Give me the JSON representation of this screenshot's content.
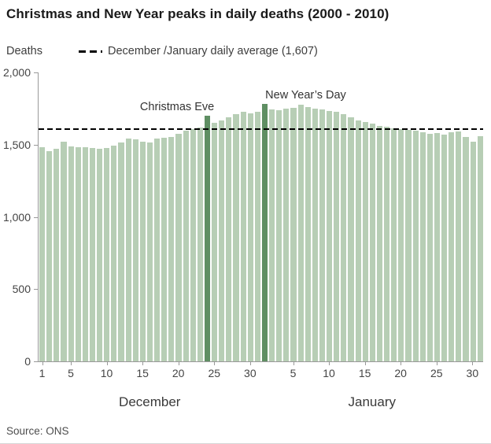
{
  "title": "Christmas and New Year peaks in daily deaths (2000 - 2010)",
  "legend": {
    "average_label": "December /January daily average (1,607)"
  },
  "annotations": {
    "christmas": {
      "label": "Christmas Eve",
      "index": 23
    },
    "new_year": {
      "label": "New Year’s Day",
      "index": 31
    }
  },
  "source": "Source: ONS",
  "colors": {
    "bar": "#b7ceb5",
    "bar_highlight": "#5f8f63",
    "average_line": "#000000",
    "axis": "#999999"
  },
  "chart_data": {
    "type": "bar",
    "title": "Christmas and New Year peaks in daily deaths (2000 - 2010)",
    "ylabel": "Deaths",
    "xlabel": "",
    "ylim": [
      0,
      2000
    ],
    "yticks": [
      0,
      500,
      1000,
      1500,
      2000
    ],
    "ytick_labels": [
      "0",
      "500",
      "1,000",
      "1,500",
      "2,000"
    ],
    "average": 1607,
    "grid": false,
    "legend_position": "top",
    "months": [
      {
        "label": "December",
        "days": 31,
        "tick_days": [
          1,
          5,
          10,
          15,
          20,
          25,
          30
        ]
      },
      {
        "label": "January",
        "days": 31,
        "tick_days": [
          5,
          10,
          15,
          20,
          25,
          30
        ]
      }
    ],
    "highlight_indices": [
      23,
      31
    ],
    "values": [
      1480,
      1455,
      1470,
      1520,
      1490,
      1480,
      1480,
      1475,
      1470,
      1475,
      1495,
      1515,
      1540,
      1535,
      1520,
      1515,
      1545,
      1550,
      1555,
      1575,
      1595,
      1610,
      1620,
      1700,
      1650,
      1665,
      1690,
      1710,
      1725,
      1715,
      1725,
      1780,
      1745,
      1740,
      1750,
      1755,
      1775,
      1760,
      1750,
      1745,
      1735,
      1725,
      1710,
      1690,
      1670,
      1655,
      1645,
      1630,
      1625,
      1615,
      1610,
      1600,
      1595,
      1585,
      1575,
      1580,
      1570,
      1585,
      1590,
      1555,
      1520,
      1560
    ]
  }
}
